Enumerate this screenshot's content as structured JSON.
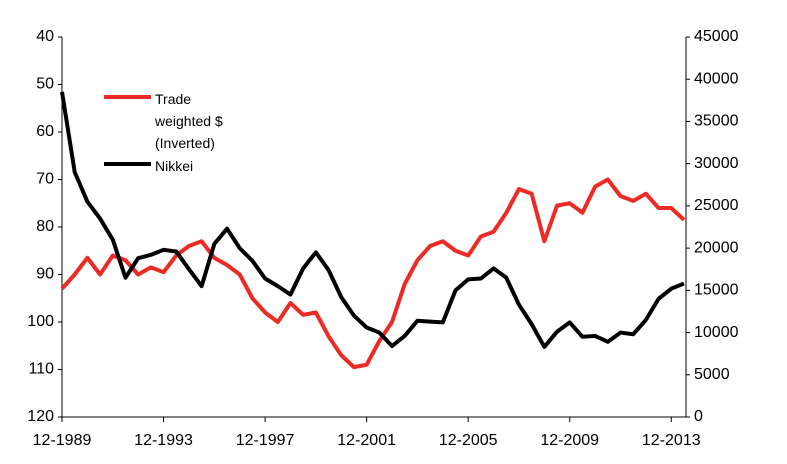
{
  "chart_data": {
    "type": "line",
    "x": [
      1989.92,
      1990.42,
      1990.92,
      1991.42,
      1991.92,
      1992.42,
      1992.92,
      1993.42,
      1993.92,
      1994.42,
      1994.92,
      1995.42,
      1995.92,
      1996.42,
      1996.92,
      1997.42,
      1997.92,
      1998.42,
      1998.92,
      1999.42,
      1999.92,
      2000.42,
      2000.92,
      2001.42,
      2001.92,
      2002.42,
      2002.92,
      2003.42,
      2003.92,
      2004.42,
      2004.92,
      2005.42,
      2005.92,
      2006.42,
      2006.92,
      2007.42,
      2007.92,
      2008.42,
      2008.92,
      2009.42,
      2009.92,
      2010.42,
      2010.92,
      2011.42,
      2011.92,
      2012.42,
      2012.92,
      2013.42,
      2013.92,
      2014.42
    ],
    "series": [
      {
        "name": "Trade weighted $ (Inverted)",
        "color": "#ee2a24",
        "values": [
          93,
          90,
          86.5,
          90,
          86,
          87,
          90,
          88.5,
          89.5,
          86,
          84,
          83,
          86.5,
          88,
          90,
          95,
          98,
          100,
          96,
          98.5,
          98,
          103,
          107,
          109.5,
          109,
          104,
          100,
          92,
          87,
          84,
          83,
          85,
          86,
          82,
          81,
          77,
          72,
          73,
          83,
          75.5,
          75,
          77,
          71.5,
          70,
          73.5,
          74.5,
          73,
          76,
          76,
          78.5
        ]
      },
      {
        "name": "Nikkei",
        "color": "#000000",
        "axis": "y2",
        "values": [
          38500,
          29000,
          25500,
          23500,
          21000,
          16500,
          18800,
          19200,
          19800,
          19600,
          17500,
          15500,
          20500,
          22300,
          20000,
          18500,
          16400,
          15500,
          14500,
          17600,
          19500,
          17400,
          14200,
          12000,
          10600,
          10000,
          8400,
          9600,
          11400,
          11300,
          11200,
          15000,
          16300,
          16400,
          17600,
          16500,
          13300,
          11000,
          8300,
          10100,
          11200,
          9500,
          9600,
          8900,
          10000,
          9800,
          11500,
          14000,
          15200,
          15800
        ]
      }
    ],
    "xlim": [
      1989.92,
      2014.5
    ],
    "xticks": [
      {
        "value": 1989.92,
        "label": "12-1989"
      },
      {
        "value": 1993.92,
        "label": "12-1993"
      },
      {
        "value": 1997.92,
        "label": "12-1997"
      },
      {
        "value": 2001.92,
        "label": "12-2001"
      },
      {
        "value": 2005.92,
        "label": "12-2005"
      },
      {
        "value": 2009.92,
        "label": "12-2009"
      },
      {
        "value": 2013.92,
        "label": "12-2013"
      }
    ],
    "ylim": [
      120,
      40
    ],
    "yticks": [
      40,
      50,
      60,
      70,
      80,
      90,
      100,
      110,
      120
    ],
    "y2lim": [
      0,
      45000
    ],
    "y2ticks": [
      0,
      5000,
      10000,
      15000,
      20000,
      25000,
      30000,
      35000,
      40000,
      45000
    ]
  }
}
